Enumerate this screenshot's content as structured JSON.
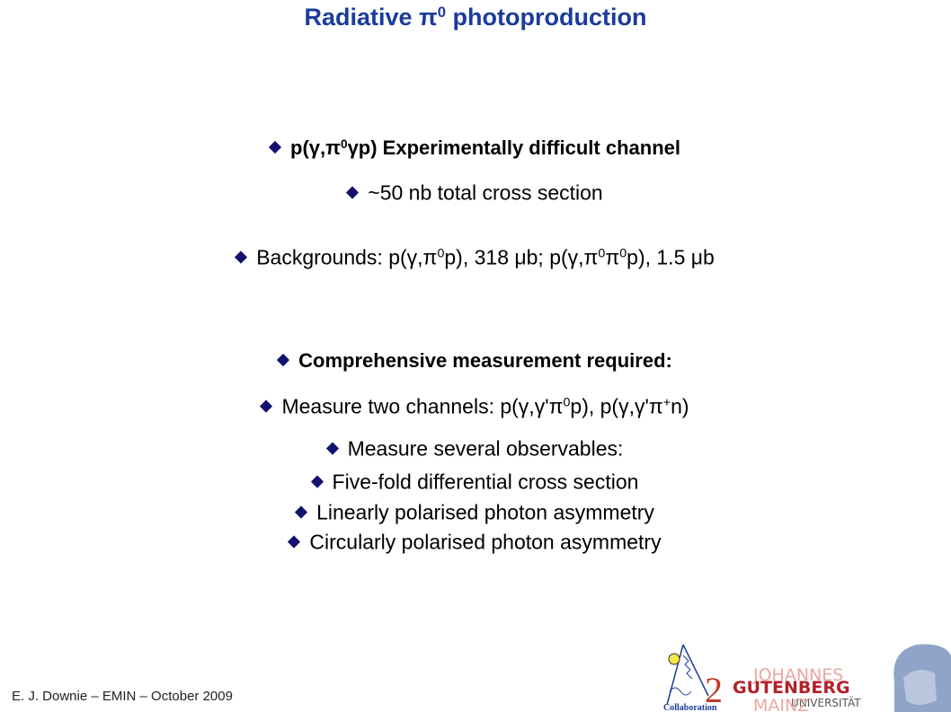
{
  "title": {
    "parts": [
      "Radiative π",
      {
        "sup": "0"
      },
      " photoproduction"
    ]
  },
  "lines": [
    {
      "bold": true,
      "parts": [
        "p(γ,π",
        {
          "sup": "0"
        },
        "γp) Experimentally difficult channel"
      ]
    },
    {
      "bold": false,
      "parts": [
        "~50 nb total cross section"
      ]
    },
    {
      "bold": false,
      "parts": [
        "Backgrounds: p(γ,π",
        {
          "sup": "0"
        },
        "p), 318 μb; p(γ,π",
        {
          "sup": "0"
        },
        "π",
        {
          "sup": "0"
        },
        "p), 1.5 μb"
      ]
    },
    {
      "bold": true,
      "parts": [
        "Comprehensive measurement required:"
      ]
    },
    {
      "bold": false,
      "parts": [
        "Measure two channels: p(γ,γ'π",
        {
          "sup": "0"
        },
        "p), p(γ,γ'π",
        {
          "sup": "+"
        },
        "n)"
      ]
    },
    {
      "bold": false,
      "parts": [
        "Measure several observables:"
      ]
    },
    {
      "bold": false,
      "parts": [
        "Five-fold differential cross section"
      ]
    },
    {
      "bold": false,
      "parts": [
        "Linearly polarised photon asymmetry"
      ]
    },
    {
      "bold": false,
      "parts": [
        "Circularly polarised photon asymmetry"
      ]
    }
  ],
  "footer": "E. J. Downie – EMIN – October 2009",
  "logos": {
    "a2_mark": "2",
    "a2_caption": "Collaboration",
    "university": [
      "JOHANNES",
      "GUTENBERG",
      "UNIVERSITÄT",
      "MAINZ"
    ]
  }
}
